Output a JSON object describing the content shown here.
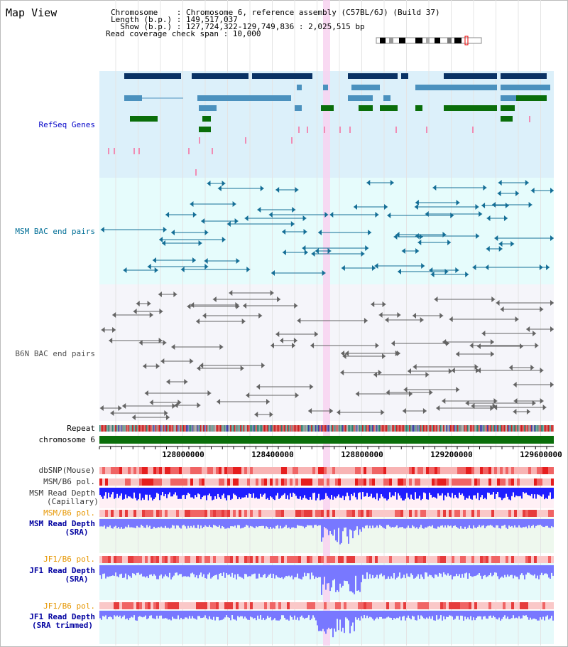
{
  "page": {
    "title": "Map View"
  },
  "header": {
    "chromosome_line": "Chromosome    : Chromosome 6, reference assembly (C57BL/6J) (Build 37)",
    "length_line": "Length (b.p.) : 149,517,037",
    "show_line": "  Show (b.p.) : 127,724,322-129,749,836 : 2,025,515 bp",
    "coverage_line": "Read coverage check span : 10,000"
  },
  "tracks": {
    "refseq": "RefSeq Genes",
    "msm_bac": "MSM BAC end pairs",
    "b6n_bac": "B6N BAC end pairs",
    "repeat": "Repeat",
    "chromosome": "chromosome 6",
    "dbsnp": "dbSNP(Mouse)",
    "msm_b6_pol_1": "MSM/B6 pol.",
    "msm_depth_cap_1": "MSM Read Depth",
    "msm_depth_cap_2": "(Capillary)",
    "msm_b6_pol_2": "MSM/B6 pol.",
    "msm_depth_sra_1": "MSM Read Depth",
    "msm_depth_sra_2": "(SRA)",
    "jf1_b6_pol_1": "JF1/B6 pol.",
    "jf1_depth_sra_1": "JF1 Read Depth",
    "jf1_depth_sra_2": "(SRA)",
    "jf1_b6_pol_2": "JF1/B6 pol.",
    "jf1_depth_trim_1": "JF1 Read Depth",
    "jf1_depth_trim_2": "(SRA trimmed)"
  },
  "axis": {
    "ticks": [
      "128000000",
      "128400000",
      "128800000",
      "129200000",
      "129600000"
    ]
  },
  "colors": {
    "refseq_bg": "#dcf0fa",
    "msm_bg": "#e6fcfc",
    "b6n_bg": "#f5f5fa",
    "highlight": "#f8d2f0",
    "dark_blue": "#0a3264",
    "mid_blue": "#4b91be",
    "green": "#0a6e0a",
    "pink": "#f08cb4",
    "teal": "#146e96",
    "gray": "#646464",
    "depth_blue": "#1e1eff",
    "depth_light": "#7878ff",
    "pol_red": "#e61e1e",
    "msm_label": "#006e96",
    "jf1_label": "#0000a0",
    "pol_label": "#e69600"
  }
}
